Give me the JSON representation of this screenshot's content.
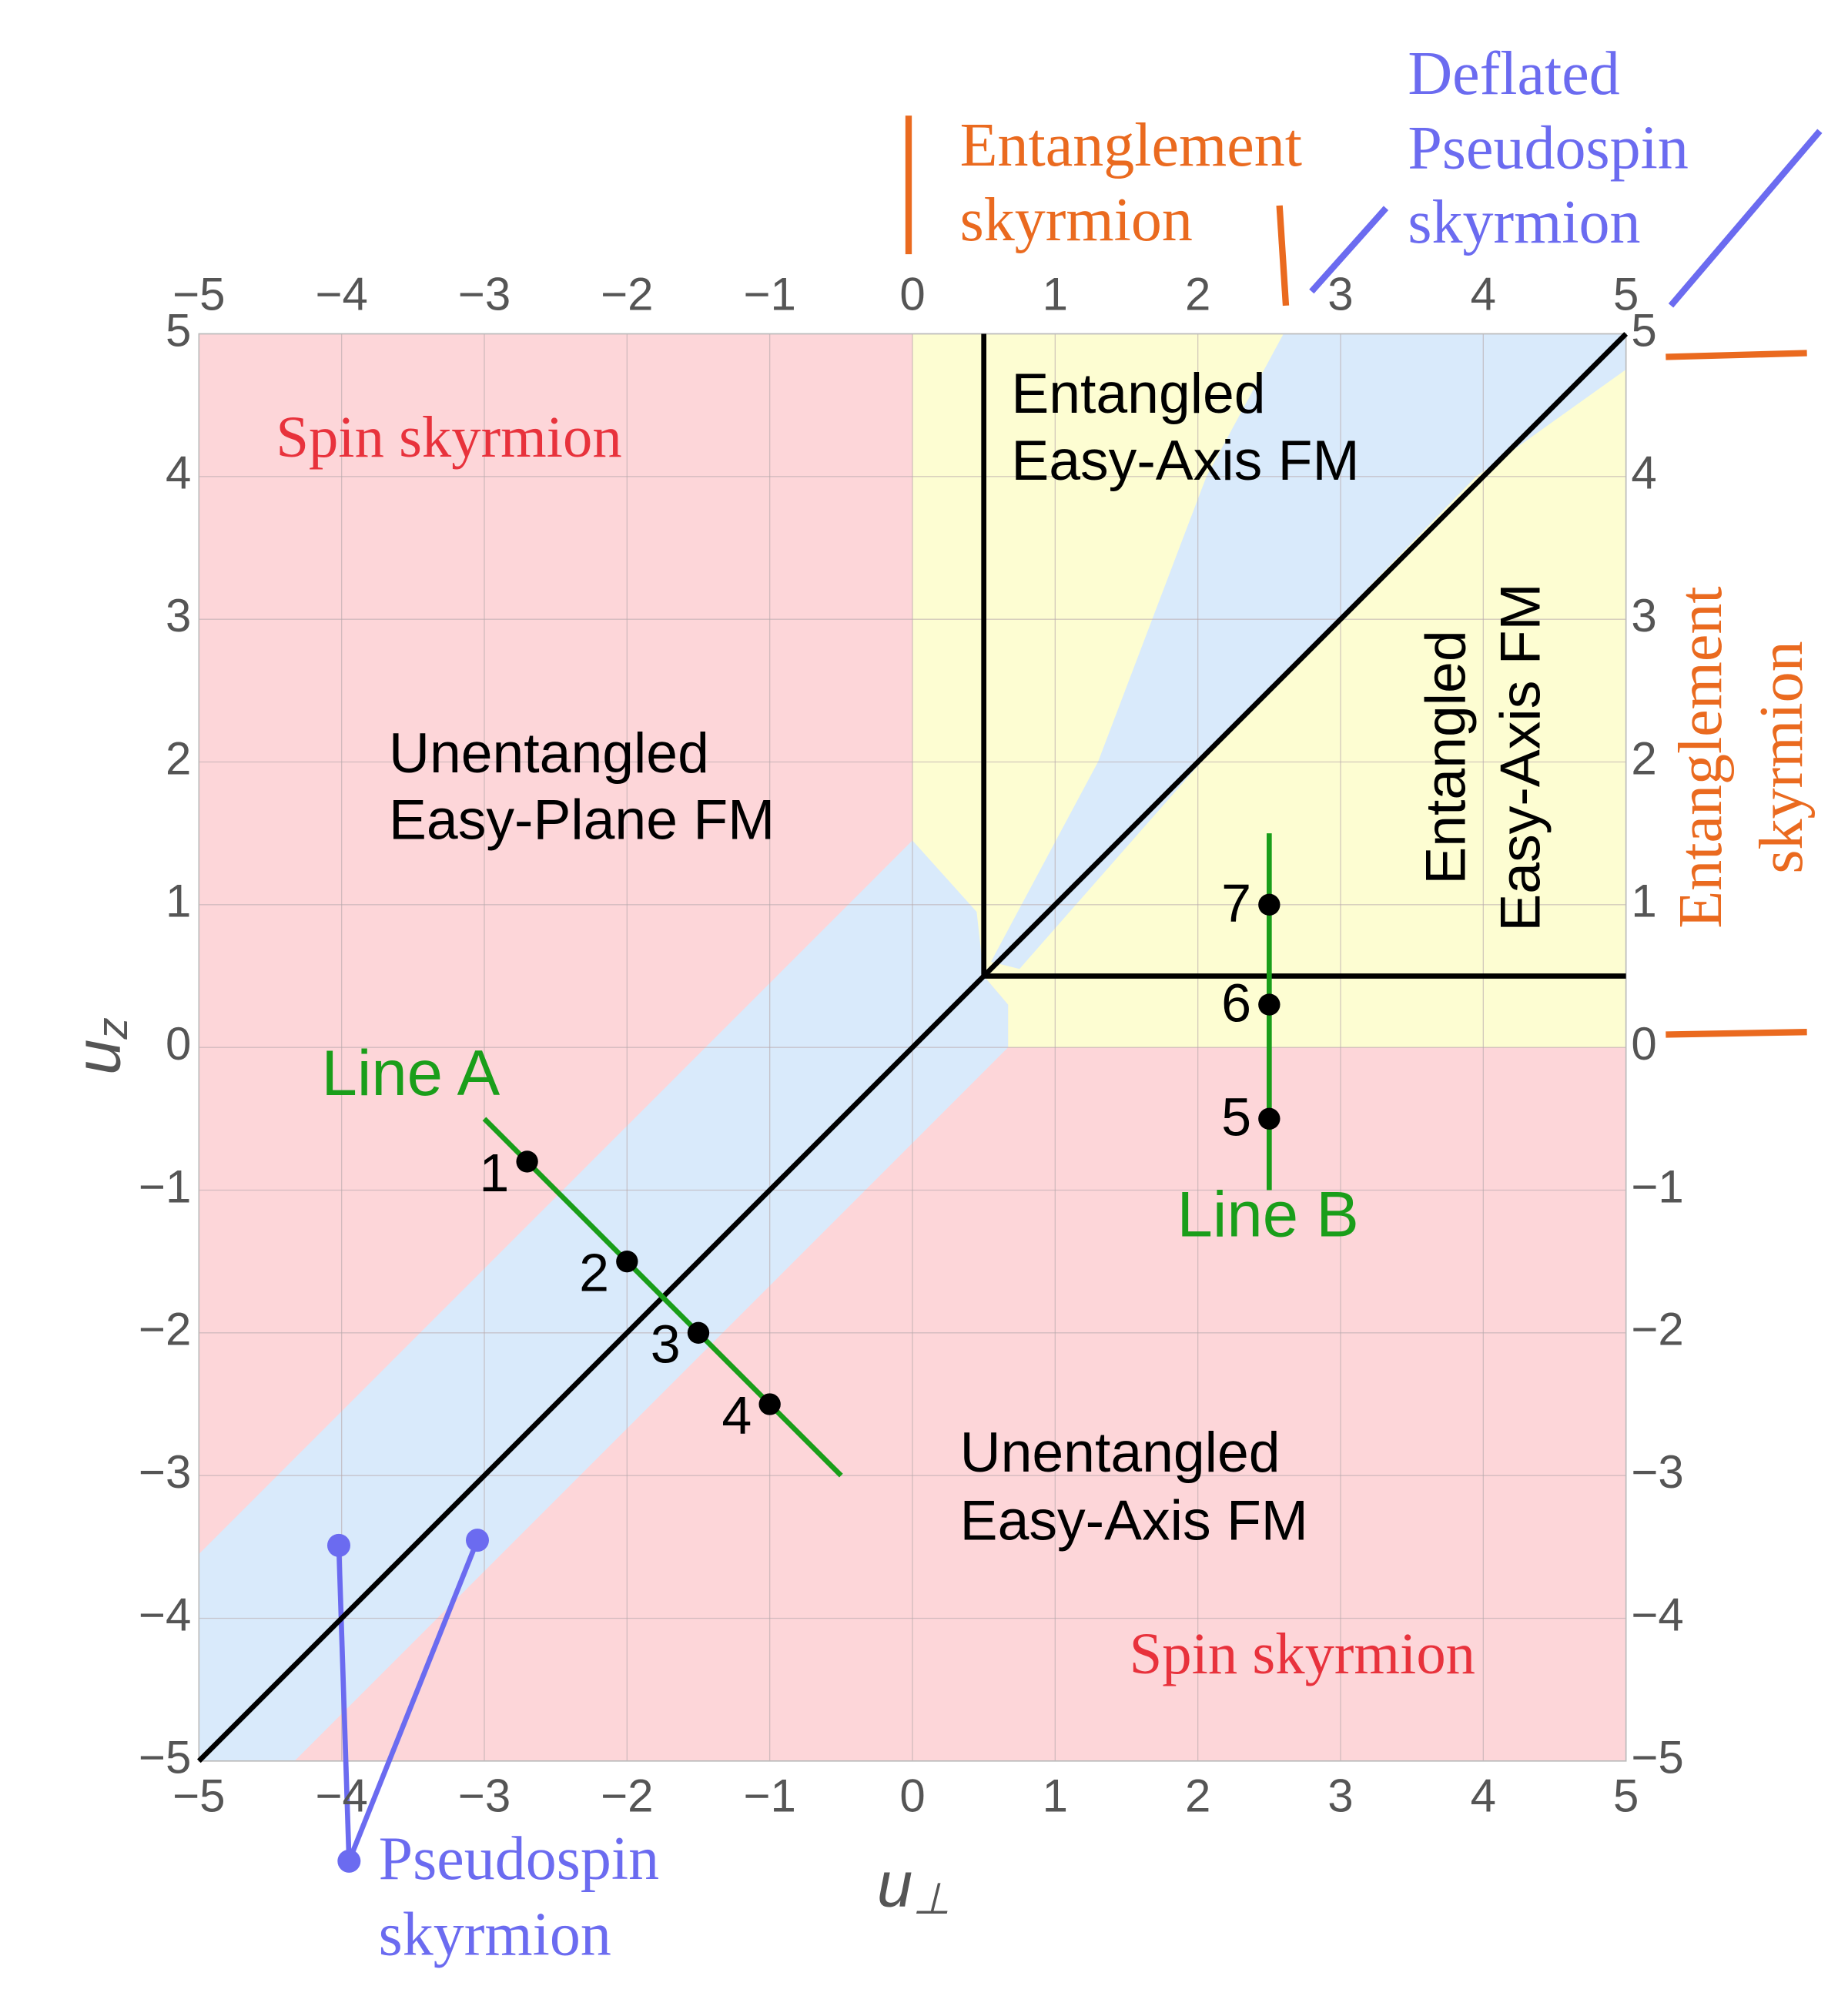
{
  "chart_data": {
    "type": "phase-diagram",
    "xlabel": [
      "u",
      "⊥"
    ],
    "ylabel": [
      "u",
      "z"
    ],
    "xlim": [
      -5,
      5
    ],
    "ylim": [
      -5,
      5
    ],
    "xticks": [
      {
        "value": -5,
        "label": "−5"
      },
      {
        "value": -4,
        "label": "−4"
      },
      {
        "value": -3,
        "label": "−3"
      },
      {
        "value": -2,
        "label": "−2"
      },
      {
        "value": -1,
        "label": "−1"
      },
      0,
      1,
      2,
      3,
      4,
      5
    ],
    "yticks": [
      {
        "value": -5,
        "label": "−5"
      },
      {
        "value": -4,
        "label": "−4"
      },
      {
        "value": -3,
        "label": "−3"
      },
      {
        "value": -2,
        "label": "−2"
      },
      {
        "value": -1,
        "label": "−1"
      },
      0,
      1,
      2,
      3,
      4,
      5
    ],
    "grid": true,
    "regions": [
      {
        "color": "#fdd6d9",
        "points": [
          [
            -5,
            -5
          ],
          [
            5,
            -5
          ],
          [
            5,
            5
          ],
          [
            -5,
            5
          ]
        ]
      },
      {
        "color": "#fdfdd2",
        "points": [
          [
            0,
            5
          ],
          [
            5,
            5
          ],
          [
            5,
            0
          ],
          [
            0.67,
            0
          ],
          [
            0.67,
            0.3
          ],
          [
            0.5,
            0.5
          ],
          [
            0,
            1.45
          ]
        ]
      },
      {
        "color": "#d9eafb",
        "points": [
          [
            -5,
            -5
          ],
          [
            -5,
            -3.55
          ],
          [
            0,
            1.45
          ],
          [
            0.45,
            0.95
          ],
          [
            0.5,
            0.5
          ],
          [
            0.67,
            0.3
          ],
          [
            0.67,
            0
          ],
          [
            -4.33,
            -5
          ]
        ]
      },
      {
        "color": "#d9eafb",
        "points": [
          [
            0.55,
            0.6
          ],
          [
            1.3,
            2
          ],
          [
            2.06,
            4
          ],
          [
            2.6,
            5
          ],
          [
            5,
            5
          ],
          [
            5,
            4.75
          ],
          [
            3.95,
            4
          ],
          [
            2.2,
            2.2
          ],
          [
            0.75,
            0.55
          ]
        ]
      }
    ],
    "boundaries": [
      {
        "color": "#000000",
        "x": [
          -5,
          5
        ],
        "y": [
          -5,
          5
        ]
      },
      {
        "color": "#000000",
        "x": [
          0.5,
          0.5
        ],
        "y": [
          0.5,
          5
        ]
      },
      {
        "color": "#000000",
        "x": [
          0.5,
          5
        ],
        "y": [
          0.5,
          0.5
        ]
      }
    ],
    "series": [
      {
        "name": "Line A",
        "color": "#1a9e1a",
        "x": [
          -3,
          -0.5
        ],
        "y": [
          -0.5,
          -3
        ]
      },
      {
        "name": "Line B",
        "color": "#1a9e1a",
        "x": [
          2.5,
          2.5
        ],
        "y": [
          -1,
          1.5
        ]
      }
    ],
    "points": {
      "color": "#000000",
      "labels": [
        1,
        2,
        3,
        4,
        5,
        6,
        7
      ],
      "x": [
        -2.7,
        -2,
        -1.5,
        -1,
        2.5,
        2.5,
        2.5
      ],
      "y": [
        -0.8,
        -1.5,
        -2,
        -2.5,
        -0.5,
        0.3,
        1
      ]
    },
    "region_labels": [
      {
        "lines": [
          "Spin skyrmion"
        ],
        "color": "#e8323c"
      },
      {
        "lines": [
          "Spin skyrmion"
        ],
        "color": "#e8323c"
      },
      {
        "lines": [
          "Unentangled",
          "Easy-Plane FM"
        ],
        "color": "#000000"
      },
      {
        "lines": [
          "Entangled",
          "Easy-Axis FM"
        ],
        "color": "#000000"
      },
      {
        "lines": [
          "Entangled",
          "Easy-Axis FM"
        ],
        "color": "#000000"
      },
      {
        "lines": [
          "Unentangled",
          "Easy-Axis FM"
        ],
        "color": "#000000"
      },
      {
        "lines": [
          "Entanglement",
          "skyrmion"
        ],
        "color": "#ea6a1f"
      },
      {
        "lines": [
          "Entanglement",
          "skyrmion"
        ],
        "color": "#ea6a1f"
      },
      {
        "lines": [
          "Deflated",
          "Pseudospin",
          "skyrmion"
        ],
        "color": "#6b6bf0"
      },
      {
        "lines": [
          "Pseudospin",
          "skyrmion"
        ],
        "color": "#6b6bf0"
      }
    ]
  }
}
